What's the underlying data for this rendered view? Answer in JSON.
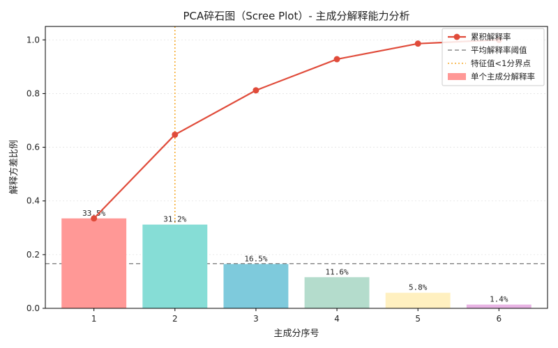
{
  "chart_data": {
    "type": "bar",
    "title": "PCA碎石图（Scree Plot）- 主成分解释能力分析",
    "xlabel": "主成分序号",
    "ylabel": "解释方差比例",
    "categories": [
      "1",
      "2",
      "3",
      "4",
      "5",
      "6"
    ],
    "ylim": [
      0,
      1.05
    ],
    "yticks": [
      0.0,
      0.2,
      0.4,
      0.6,
      0.8,
      1.0
    ],
    "ytick_labels": [
      "0.0",
      "0.2",
      "0.4",
      "0.6",
      "0.8",
      "1.0"
    ],
    "grid": "horizontal-dotted",
    "legend_position": "top-right",
    "series": [
      {
        "name": "单个主成分解释率",
        "kind": "bar",
        "values": [
          0.335,
          0.312,
          0.165,
          0.116,
          0.058,
          0.014
        ],
        "labels": [
          "33.5%",
          "31.2%",
          "16.5%",
          "11.6%",
          "5.8%",
          "1.4%"
        ],
        "colors": [
          "#ff9896",
          "#86ddd6",
          "#7ecadc",
          "#b4dccc",
          "#fff0c0",
          "#e8b4e4"
        ]
      },
      {
        "name": "累积解释率",
        "kind": "line",
        "values": [
          0.335,
          0.647,
          0.812,
          0.928,
          0.986,
          1.0
        ],
        "color": "#e04b3a"
      }
    ],
    "reference_lines": [
      {
        "name": "平均解释率阈值",
        "orientation": "horizontal",
        "value": 0.1667,
        "color": "#888888",
        "style": "dashed"
      },
      {
        "name": "特征值<1分界点",
        "orientation": "vertical",
        "value": 2,
        "color": "#f5a623",
        "style": "dotted"
      }
    ],
    "legend": [
      {
        "label": "累积解释率",
        "kind": "line-marker",
        "color": "#e04b3a"
      },
      {
        "label": "平均解释率阈值",
        "kind": "dashed",
        "color": "#888888"
      },
      {
        "label": "特征值<1分界点",
        "kind": "dotted",
        "color": "#f5a623"
      },
      {
        "label": "单个主成分解释率",
        "kind": "patch",
        "color": "#ff9896"
      }
    ]
  }
}
